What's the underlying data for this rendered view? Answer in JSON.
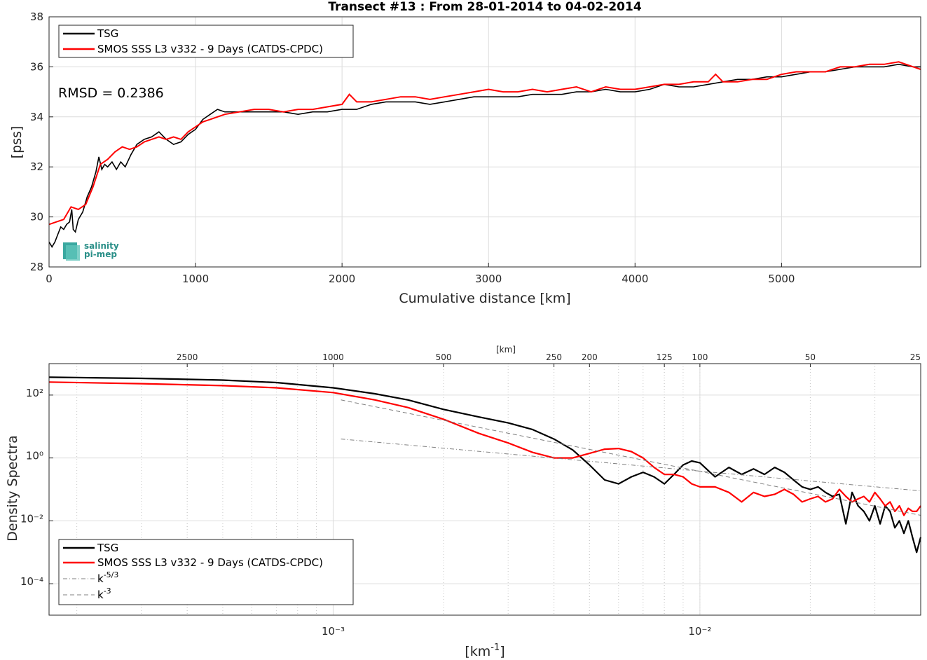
{
  "chart_data": [
    {
      "type": "line",
      "title": "Transect #13 : From 28-01-2014 to 04-02-2014",
      "xlabel": "Cumulative distance [km]",
      "ylabel": "[pss]",
      "xlim": [
        0,
        5950
      ],
      "ylim": [
        28,
        38
      ],
      "xticks": [
        0,
        1000,
        2000,
        3000,
        4000,
        5000
      ],
      "yticks": [
        28,
        30,
        32,
        34,
        36,
        38
      ],
      "grid": true,
      "legend_position": "top-left",
      "annotation": "RMSD = 0.2386",
      "logo_text": [
        "salinity",
        "pi-mep"
      ],
      "series": [
        {
          "name": "TSG",
          "color": "#000000",
          "x": [
            0,
            20,
            40,
            60,
            80,
            100,
            120,
            140,
            155,
            165,
            180,
            200,
            230,
            260,
            290,
            320,
            340,
            360,
            380,
            400,
            430,
            460,
            490,
            520,
            560,
            600,
            650,
            700,
            750,
            800,
            850,
            900,
            950,
            1000,
            1050,
            1100,
            1150,
            1200,
            1300,
            1400,
            1500,
            1600,
            1700,
            1800,
            1900,
            2000,
            2100,
            2200,
            2300,
            2400,
            2500,
            2600,
            2700,
            2800,
            2900,
            3000,
            3100,
            3200,
            3300,
            3400,
            3500,
            3600,
            3700,
            3800,
            3900,
            4000,
            4100,
            4200,
            4300,
            4400,
            4500,
            4600,
            4700,
            4800,
            4900,
            5000,
            5100,
            5200,
            5300,
            5400,
            5500,
            5600,
            5700,
            5800,
            5900,
            5950
          ],
          "values": [
            29.0,
            28.8,
            29.0,
            29.3,
            29.6,
            29.5,
            29.7,
            29.8,
            30.3,
            29.5,
            29.4,
            29.9,
            30.2,
            30.8,
            31.2,
            31.8,
            32.4,
            31.9,
            32.1,
            32.0,
            32.2,
            31.9,
            32.2,
            32.0,
            32.5,
            32.9,
            33.1,
            33.2,
            33.4,
            33.1,
            32.9,
            33.0,
            33.3,
            33.5,
            33.9,
            34.1,
            34.3,
            34.2,
            34.2,
            34.2,
            34.2,
            34.2,
            34.1,
            34.2,
            34.2,
            34.3,
            34.3,
            34.5,
            34.6,
            34.6,
            34.6,
            34.5,
            34.6,
            34.7,
            34.8,
            34.8,
            34.8,
            34.8,
            34.9,
            34.9,
            34.9,
            35.0,
            35.0,
            35.1,
            35.0,
            35.0,
            35.1,
            35.3,
            35.2,
            35.2,
            35.3,
            35.4,
            35.5,
            35.5,
            35.6,
            35.6,
            35.7,
            35.8,
            35.8,
            35.9,
            36.0,
            36.0,
            36.0,
            36.1,
            36.0,
            36.0
          ]
        },
        {
          "name": "SMOS SSS L3 v332 - 9 Days (CATDS-CPDC)",
          "color": "#ff0000",
          "x": [
            0,
            50,
            100,
            150,
            200,
            250,
            300,
            350,
            400,
            450,
            500,
            550,
            600,
            650,
            700,
            750,
            800,
            850,
            900,
            950,
            1000,
            1050,
            1100,
            1150,
            1200,
            1300,
            1400,
            1500,
            1600,
            1700,
            1800,
            1900,
            2000,
            2050,
            2100,
            2200,
            2300,
            2400,
            2500,
            2600,
            2700,
            2800,
            2900,
            3000,
            3100,
            3200,
            3300,
            3400,
            3500,
            3600,
            3700,
            3800,
            3900,
            4000,
            4100,
            4200,
            4300,
            4400,
            4500,
            4550,
            4600,
            4700,
            4800,
            4900,
            5000,
            5100,
            5200,
            5300,
            5400,
            5500,
            5600,
            5700,
            5800,
            5900,
            5950
          ],
          "values": [
            29.7,
            29.8,
            29.9,
            30.4,
            30.3,
            30.5,
            31.2,
            32.1,
            32.3,
            32.6,
            32.8,
            32.7,
            32.8,
            33.0,
            33.1,
            33.2,
            33.1,
            33.2,
            33.1,
            33.4,
            33.6,
            33.8,
            33.9,
            34.0,
            34.1,
            34.2,
            34.3,
            34.3,
            34.2,
            34.3,
            34.3,
            34.4,
            34.5,
            34.9,
            34.6,
            34.6,
            34.7,
            34.8,
            34.8,
            34.7,
            34.8,
            34.9,
            35.0,
            35.1,
            35.0,
            35.0,
            35.1,
            35.0,
            35.1,
            35.2,
            35.0,
            35.2,
            35.1,
            35.1,
            35.2,
            35.3,
            35.3,
            35.4,
            35.4,
            35.7,
            35.4,
            35.4,
            35.5,
            35.5,
            35.7,
            35.8,
            35.8,
            35.8,
            36.0,
            36.0,
            36.1,
            36.1,
            36.2,
            36.0,
            35.9
          ]
        }
      ]
    },
    {
      "type": "line",
      "title": "",
      "xlabel": "[km⁻¹]",
      "ylabel": "Density Spectra",
      "top_axis_label": "[km]",
      "x_scale": "log",
      "y_scale": "log",
      "xlim": [
        0.000168,
        0.04
      ],
      "ylim": [
        1e-05,
        1000
      ],
      "xtick_labels": [
        "10⁻³",
        "10⁻²"
      ],
      "xtick_values": [
        0.001,
        0.01
      ],
      "ytick_labels": [
        "10⁻⁴",
        "10⁻²",
        "10⁰",
        "10²"
      ],
      "ytick_values": [
        0.0001,
        0.01,
        1,
        100
      ],
      "top_ticks": [
        "2500",
        "1000",
        "500",
        "250",
        "200",
        "125",
        "100",
        "50",
        "25"
      ],
      "top_tick_values": [
        2500,
        1000,
        500,
        250,
        200,
        125,
        100,
        50,
        25
      ],
      "grid": true,
      "legend_position": "bottom-left",
      "series": [
        {
          "name": "TSG",
          "color": "#000000",
          "style": "solid",
          "x": [
            0.000168,
            0.0003,
            0.0005,
            0.0007,
            0.001,
            0.0013,
            0.0016,
            0.002,
            0.0025,
            0.003,
            0.0035,
            0.004,
            0.0045,
            0.005,
            0.0055,
            0.006,
            0.0065,
            0.007,
            0.0075,
            0.008,
            0.0085,
            0.009,
            0.0095,
            0.01,
            0.011,
            0.012,
            0.013,
            0.014,
            0.015,
            0.016,
            0.017,
            0.018,
            0.019,
            0.02,
            0.021,
            0.022,
            0.023,
            0.024,
            0.025,
            0.026,
            0.027,
            0.028,
            0.029,
            0.03,
            0.031,
            0.032,
            0.033,
            0.034,
            0.035,
            0.036,
            0.037,
            0.038,
            0.039,
            0.04
          ],
          "values": [
            370,
            340,
            300,
            250,
            170,
            110,
            70,
            35,
            20,
            13,
            8,
            4,
            1.8,
            0.6,
            0.2,
            0.15,
            0.25,
            0.35,
            0.25,
            0.15,
            0.3,
            0.6,
            0.8,
            0.7,
            0.25,
            0.5,
            0.3,
            0.45,
            0.3,
            0.5,
            0.35,
            0.2,
            0.12,
            0.1,
            0.12,
            0.08,
            0.06,
            0.07,
            0.008,
            0.08,
            0.03,
            0.02,
            0.01,
            0.03,
            0.008,
            0.03,
            0.02,
            0.006,
            0.01,
            0.004,
            0.01,
            0.003,
            0.001,
            0.003
          ]
        },
        {
          "name": "SMOS SSS L3 v332 - 9 Days (CATDS-CPDC)",
          "color": "#ff0000",
          "style": "solid",
          "x": [
            0.000168,
            0.0003,
            0.0005,
            0.0007,
            0.001,
            0.0013,
            0.0016,
            0.002,
            0.0025,
            0.003,
            0.0035,
            0.004,
            0.0045,
            0.005,
            0.0055,
            0.006,
            0.0065,
            0.007,
            0.0075,
            0.008,
            0.0085,
            0.009,
            0.0095,
            0.01,
            0.011,
            0.012,
            0.013,
            0.014,
            0.015,
            0.016,
            0.017,
            0.018,
            0.019,
            0.02,
            0.021,
            0.022,
            0.023,
            0.024,
            0.025,
            0.026,
            0.027,
            0.028,
            0.029,
            0.03,
            0.031,
            0.032,
            0.033,
            0.034,
            0.035,
            0.036,
            0.037,
            0.038,
            0.039,
            0.04
          ],
          "values": [
            260,
            230,
            200,
            170,
            120,
            70,
            40,
            17,
            6,
            3,
            1.5,
            1.0,
            1.0,
            1.4,
            1.9,
            2.0,
            1.6,
            1.0,
            0.5,
            0.3,
            0.3,
            0.25,
            0.15,
            0.12,
            0.12,
            0.08,
            0.04,
            0.08,
            0.06,
            0.07,
            0.1,
            0.07,
            0.04,
            0.05,
            0.06,
            0.04,
            0.05,
            0.1,
            0.06,
            0.04,
            0.05,
            0.06,
            0.04,
            0.08,
            0.05,
            0.03,
            0.04,
            0.02,
            0.03,
            0.015,
            0.025,
            0.02,
            0.02,
            0.03
          ]
        },
        {
          "name": "k^-5/3",
          "color": "#808080",
          "style": "dashdot",
          "x": [
            0.00105,
            0.04
          ],
          "values": [
            4.0,
            0.09
          ]
        },
        {
          "name": "k^-3",
          "color": "#808080",
          "style": "dashed",
          "x": [
            0.00105,
            0.04
          ],
          "values": [
            70,
            0.015
          ]
        }
      ]
    }
  ]
}
